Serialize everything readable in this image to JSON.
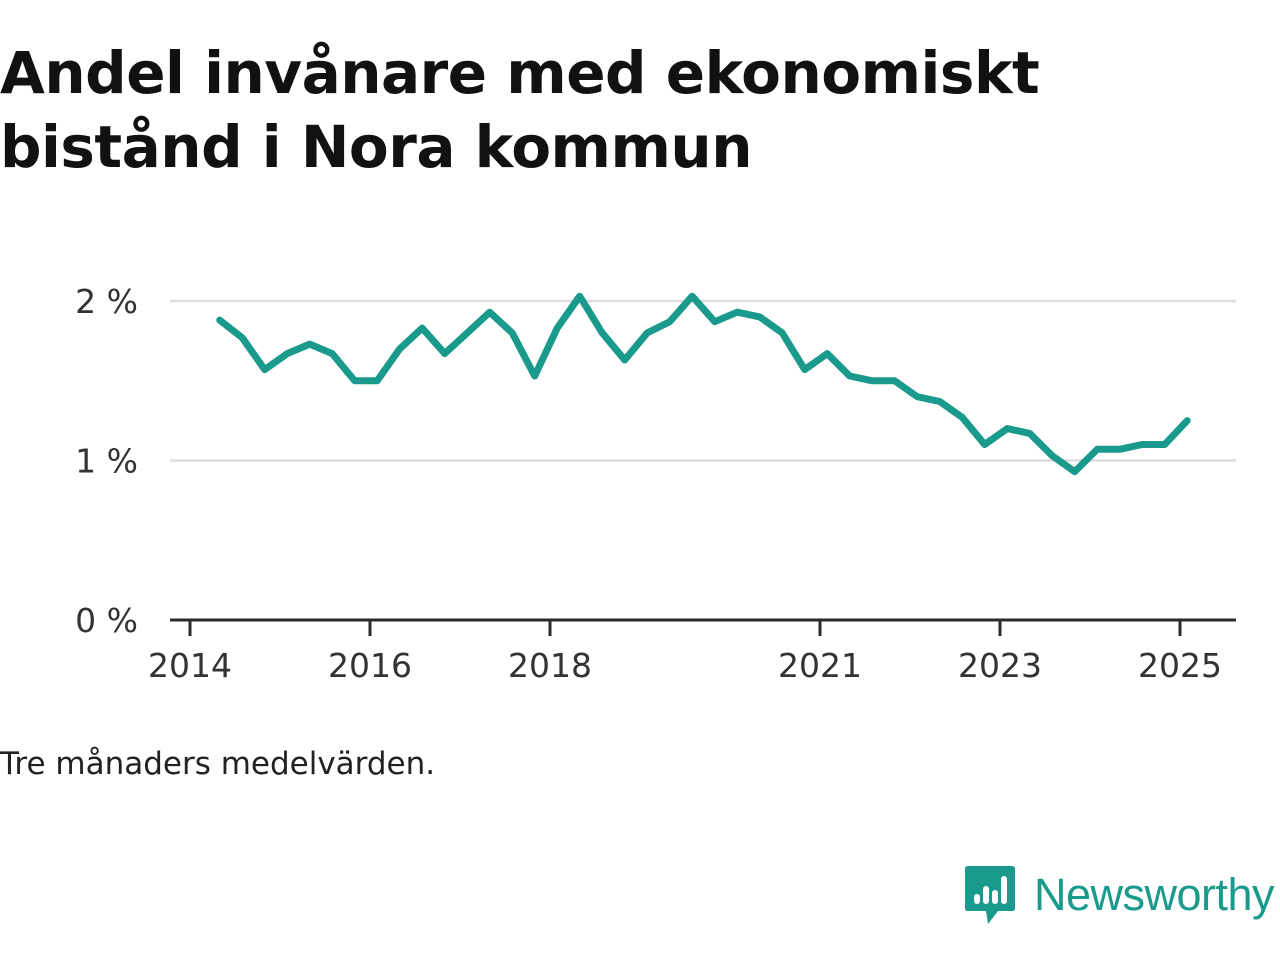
{
  "title": "Andel invånare med ekonomiskt bistånd i Nora kommun",
  "note": "Tre månaders medelvärden.",
  "brand": {
    "name": "Newsworthy",
    "color": "#1a9a8c"
  },
  "chart_data": {
    "type": "line",
    "title": "Andel invånare med ekonomiskt bistånd i Nora kommun",
    "xlabel": "",
    "ylabel": "",
    "ylim": [
      0,
      2
    ],
    "yticks": [
      {
        "value": 0,
        "label": "0 %"
      },
      {
        "value": 1,
        "label": "1 %"
      },
      {
        "value": 2,
        "label": "2 %"
      }
    ],
    "xticks": [
      {
        "value": 2014,
        "label": "2014"
      },
      {
        "value": 2016,
        "label": "2016"
      },
      {
        "value": 2018,
        "label": "2018"
      },
      {
        "value": 2021,
        "label": "2021"
      },
      {
        "value": 2023,
        "label": "2023"
      },
      {
        "value": 2025,
        "label": "2025"
      }
    ],
    "grid": true,
    "line_color": "#1a9a8c",
    "series": [
      {
        "x": [
          2014.33,
          2014.58,
          2014.83,
          2015.08,
          2015.33,
          2015.58,
          2015.83,
          2016.08,
          2016.33,
          2016.58,
          2016.83,
          2017.08,
          2017.33,
          2017.58,
          2017.83,
          2018.08,
          2018.33,
          2018.58,
          2018.83,
          2019.08,
          2019.33,
          2019.58,
          2019.83,
          2020.08,
          2020.33,
          2020.58,
          2020.83,
          2021.08,
          2021.33,
          2021.58,
          2021.83,
          2022.08,
          2022.33,
          2022.58,
          2022.83,
          2023.08,
          2023.33,
          2023.58,
          2023.83,
          2024.08,
          2024.33,
          2024.58,
          2024.83,
          2025.08
        ],
        "values": [
          1.88,
          1.77,
          1.57,
          1.67,
          1.73,
          1.67,
          1.5,
          1.5,
          1.7,
          1.83,
          1.67,
          1.8,
          1.93,
          1.8,
          1.53,
          1.83,
          2.03,
          1.8,
          1.63,
          1.8,
          1.87,
          2.03,
          1.87,
          1.93,
          1.9,
          1.8,
          1.57,
          1.67,
          1.53,
          1.5,
          1.5,
          1.4,
          1.37,
          1.27,
          1.1,
          1.2,
          1.17,
          1.03,
          0.93,
          1.07,
          1.07,
          1.1,
          1.1,
          1.25
        ]
      }
    ]
  }
}
